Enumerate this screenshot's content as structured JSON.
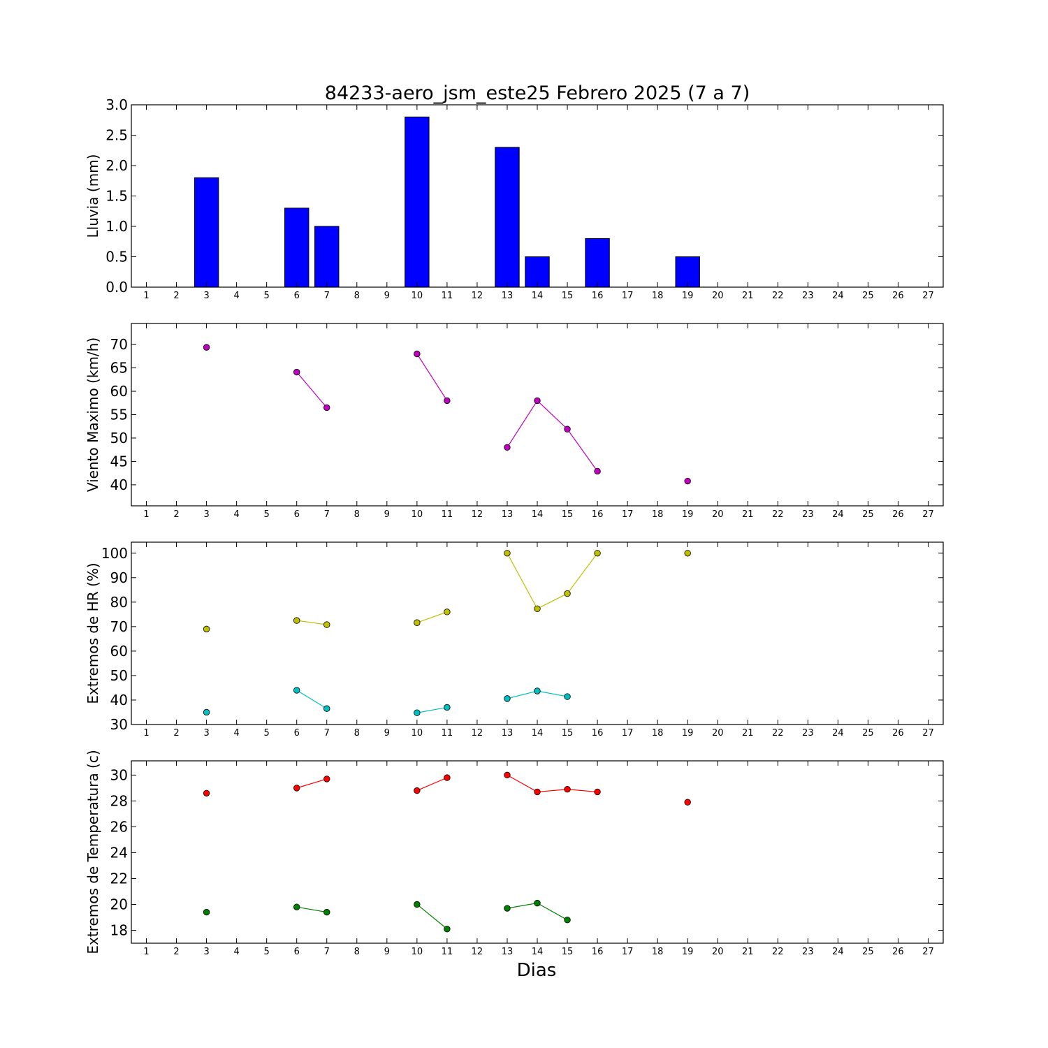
{
  "chart_data": {
    "title": "84233-aero_jsm_este25 Febrero 2025  (7 a 7)",
    "xlabel": "Dias",
    "days": [
      "1",
      "2",
      "3",
      "4",
      "5",
      "6",
      "7",
      "8",
      "9",
      "10",
      "11",
      "12",
      "13",
      "14",
      "15",
      "16",
      "17",
      "18",
      "19",
      "20",
      "21",
      "22",
      "23",
      "24",
      "25",
      "26",
      "27"
    ],
    "xlim": [
      0.5,
      27.5
    ],
    "panels": [
      {
        "type": "bar",
        "ylabel": "Lluvia (mm)",
        "ylim": [
          0,
          3.0
        ],
        "yticks": [
          "0.0",
          "0.5",
          "1.0",
          "1.5",
          "2.0",
          "2.5",
          "3.0"
        ],
        "yticks_values": [
          0,
          0.5,
          1.0,
          1.5,
          2.0,
          2.5,
          3.0
        ],
        "series": [
          {
            "color": "#0000ff",
            "points": [
              [
                3,
                1.8
              ],
              [
                6,
                1.3
              ],
              [
                7,
                1.0
              ],
              [
                10,
                2.8
              ],
              [
                13,
                2.3
              ],
              [
                14,
                0.5
              ],
              [
                16,
                0.8
              ],
              [
                19,
                0.5
              ]
            ]
          }
        ]
      },
      {
        "type": "line",
        "ylabel": "Viento Maximo (km/h)",
        "ylim": [
          35.5,
          74.5
        ],
        "yticks": [
          "40",
          "45",
          "50",
          "55",
          "60",
          "65",
          "70"
        ],
        "yticks_values": [
          40,
          45,
          50,
          55,
          60,
          65,
          70
        ],
        "series": [
          {
            "color": "#bf00bf",
            "points": [
              [
                3,
                69.4
              ],
              [
                6,
                64.1
              ],
              [
                7,
                56.5
              ],
              [
                10,
                68.0
              ],
              [
                11,
                58.0
              ],
              [
                13,
                48.0
              ],
              [
                14,
                58.0
              ],
              [
                15,
                51.9
              ],
              [
                16,
                42.9
              ],
              [
                19,
                40.8
              ]
            ]
          }
        ]
      },
      {
        "type": "line",
        "ylabel": "Extremos de HR (%)",
        "ylim": [
          30,
          104.5
        ],
        "yticks": [
          "30",
          "40",
          "50",
          "60",
          "70",
          "80",
          "90",
          "100"
        ],
        "yticks_values": [
          30,
          40,
          50,
          60,
          70,
          80,
          90,
          100
        ],
        "series": [
          {
            "color": "#bfbf00",
            "points": [
              [
                3,
                69.0
              ],
              [
                6,
                72.5
              ],
              [
                7,
                70.8
              ],
              [
                10,
                71.6
              ],
              [
                11,
                76.0
              ],
              [
                13,
                100
              ],
              [
                14,
                77.3
              ],
              [
                15,
                83.5
              ],
              [
                16,
                100
              ],
              [
                19,
                100
              ]
            ]
          },
          {
            "color": "#00bfbf",
            "points": [
              [
                3,
                35.0
              ],
              [
                6,
                44.0
              ],
              [
                7,
                36.5
              ],
              [
                10,
                34.8
              ],
              [
                11,
                37.0
              ],
              [
                13,
                40.6
              ],
              [
                14,
                43.7
              ],
              [
                15,
                41.4
              ]
            ]
          }
        ]
      },
      {
        "type": "line",
        "ylabel": "Extremos de Temperatura (c)",
        "ylim": [
          17.0,
          31.1
        ],
        "yticks": [
          "18",
          "20",
          "22",
          "24",
          "26",
          "28",
          "30"
        ],
        "yticks_values": [
          18,
          20,
          22,
          24,
          26,
          28,
          30
        ],
        "series": [
          {
            "color": "#ff0000",
            "points": [
              [
                3,
                28.6
              ],
              [
                6,
                29.0
              ],
              [
                7,
                29.7
              ],
              [
                10,
                28.8
              ],
              [
                11,
                29.8
              ],
              [
                13,
                30.0
              ],
              [
                14,
                28.7
              ],
              [
                15,
                28.9
              ],
              [
                16,
                28.7
              ],
              [
                19,
                27.9
              ]
            ]
          },
          {
            "color": "#008000",
            "points": [
              [
                3,
                19.4
              ],
              [
                6,
                19.8
              ],
              [
                7,
                19.4
              ],
              [
                10,
                20.0
              ],
              [
                11,
                18.1
              ],
              [
                13,
                19.7
              ],
              [
                14,
                20.1
              ],
              [
                15,
                18.8
              ]
            ]
          }
        ]
      }
    ]
  }
}
